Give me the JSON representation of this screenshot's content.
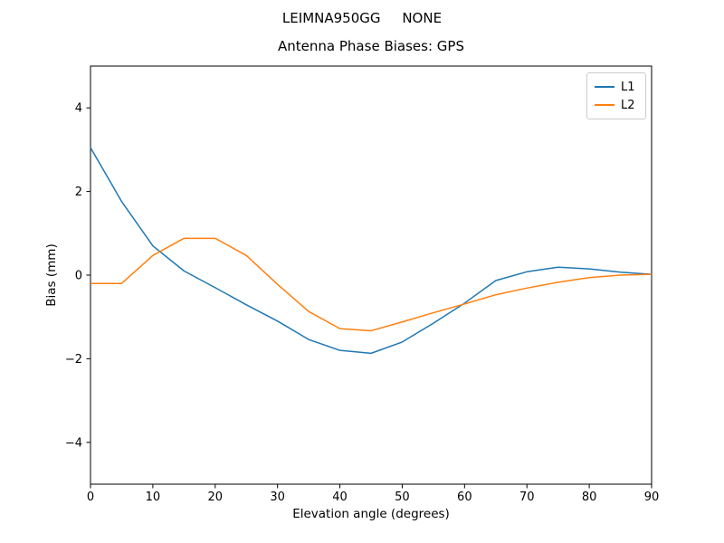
{
  "chart_data": {
    "type": "line",
    "suptitle": "LEIMNA950GG     NONE",
    "title": "Antenna Phase Biases: GPS",
    "xlabel": "Elevation angle (degrees)",
    "ylabel": "Bias (mm)",
    "xlim": [
      0,
      90
    ],
    "ylim": [
      -5,
      5
    ],
    "xticks": [
      0,
      10,
      20,
      30,
      40,
      50,
      60,
      70,
      80,
      90
    ],
    "yticks": [
      -4,
      -2,
      0,
      2,
      4
    ],
    "grid": false,
    "legend_position": "upper right",
    "x": [
      0,
      5,
      10,
      15,
      20,
      25,
      30,
      35,
      40,
      45,
      50,
      55,
      60,
      65,
      70,
      75,
      80,
      85,
      90
    ],
    "series": [
      {
        "name": "L1",
        "color": "#1f77b4",
        "values": [
          3.05,
          1.76,
          0.7,
          0.1,
          -0.3,
          -0.71,
          -1.1,
          -1.54,
          -1.8,
          -1.87,
          -1.6,
          -1.15,
          -0.67,
          -0.13,
          0.08,
          0.19,
          0.15,
          0.07,
          0.02
        ]
      },
      {
        "name": "L2",
        "color": "#ff7f0e",
        "values": [
          -0.2,
          -0.2,
          0.47,
          0.88,
          0.88,
          0.47,
          -0.22,
          -0.87,
          -1.28,
          -1.33,
          -1.12,
          -0.9,
          -0.69,
          -0.47,
          -0.31,
          -0.17,
          -0.06,
          0.0,
          0.02
        ]
      }
    ]
  }
}
